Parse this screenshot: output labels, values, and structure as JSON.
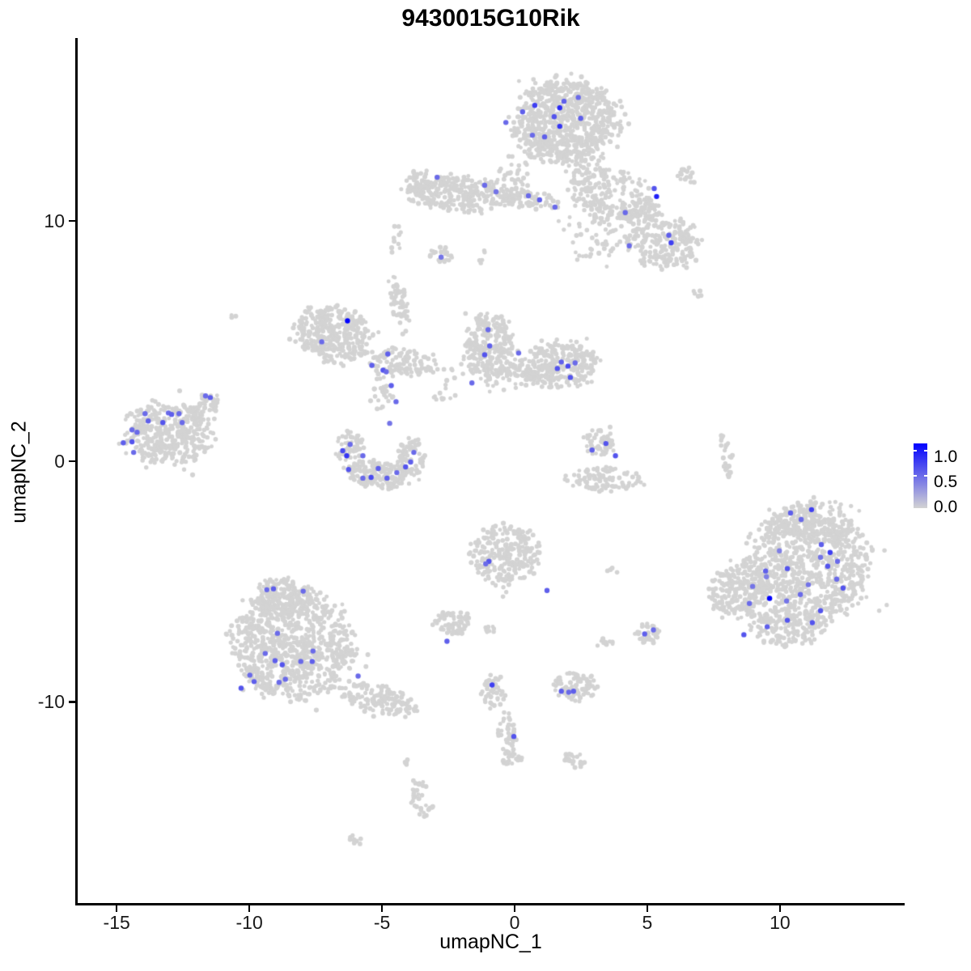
{
  "chart_data": {
    "type": "scatter",
    "title": "9430015G10Rik",
    "xlabel": "umapNC_1",
    "ylabel": "umapNC_2",
    "grid": false,
    "x_domain": [
      -16.5,
      14.7
    ],
    "y_domain": [
      -18.4,
      17.6
    ],
    "x_ticks": [
      -15,
      -10,
      -5,
      0,
      5,
      10
    ],
    "x_tick_labels": [
      "-15",
      "-10",
      "-5",
      "0",
      "5",
      "10"
    ],
    "y_ticks": [
      10,
      0,
      -10
    ],
    "y_tick_labels": [
      "10",
      "0",
      "-10"
    ],
    "legend": {
      "position": "right",
      "labels": [
        "1.0",
        "0.5",
        "0.0"
      ],
      "values": [
        1.0,
        0.5,
        0.0
      ],
      "low_color": "#D3D3D3",
      "high_color": "#0000FF"
    },
    "point_color_low": "#D3D3D3",
    "point_color_high": "#0000FF",
    "background_clusters": [
      [
        1.95,
        14.1,
        2.0,
        1.8,
        750,
        0
      ],
      [
        2.85,
        11.4,
        0.8,
        1.5,
        120,
        15
      ],
      [
        3.8,
        11.05,
        1.4,
        1.15,
        90,
        0
      ],
      [
        -2.05,
        11.15,
        2.1,
        0.75,
        290,
        -4
      ],
      [
        0.5,
        10.85,
        1.1,
        0.42,
        70,
        -6
      ],
      [
        4.7,
        10.4,
        0.9,
        0.6,
        85,
        0
      ],
      [
        5.6,
        9.1,
        1.35,
        1.1,
        210,
        0
      ],
      [
        6.5,
        11.9,
        0.42,
        0.35,
        16,
        0
      ],
      [
        3.2,
        9.4,
        1.4,
        1.4,
        55,
        0
      ],
      [
        -2.8,
        8.6,
        0.5,
        0.42,
        24,
        45
      ],
      [
        6.9,
        7.0,
        0.2,
        0.25,
        5,
        0
      ],
      [
        -6.8,
        5.3,
        1.5,
        1.15,
        360,
        -15
      ],
      [
        -4.2,
        4.1,
        1.25,
        0.6,
        110,
        -10
      ],
      [
        -4.35,
        6.5,
        0.32,
        1.1,
        55,
        10
      ],
      [
        -4.45,
        9.2,
        0.22,
        0.75,
        10,
        0
      ],
      [
        -5.0,
        3.0,
        0.45,
        1.05,
        30,
        0
      ],
      [
        -6.2,
        0.35,
        0.55,
        0.95,
        70,
        0
      ],
      [
        -5.0,
        -0.55,
        1.15,
        0.6,
        150,
        0
      ],
      [
        -3.9,
        0.2,
        0.5,
        0.78,
        60,
        0
      ],
      [
        -0.95,
        4.7,
        0.95,
        1.5,
        270,
        0
      ],
      [
        1.8,
        4.0,
        1.3,
        1.0,
        250,
        0
      ],
      [
        0.4,
        3.7,
        0.85,
        0.6,
        70,
        0
      ],
      [
        -13.0,
        1.2,
        1.7,
        1.35,
        390,
        -8
      ],
      [
        -11.7,
        2.3,
        0.6,
        0.42,
        40,
        40
      ],
      [
        3.2,
        0.75,
        0.6,
        0.55,
        55,
        0
      ],
      [
        3.4,
        -0.75,
        1.35,
        0.52,
        100,
        0
      ],
      [
        8.0,
        0.2,
        0.22,
        0.95,
        28,
        8
      ],
      [
        -8.4,
        -7.7,
        2.3,
        2.2,
        820,
        0
      ],
      [
        -8.7,
        -5.7,
        1.2,
        0.85,
        190,
        0
      ],
      [
        -5.1,
        -9.9,
        1.45,
        0.6,
        150,
        -18
      ],
      [
        -0.35,
        -3.9,
        1.3,
        1.3,
        260,
        0
      ],
      [
        -2.3,
        -6.7,
        0.8,
        0.52,
        65,
        0
      ],
      [
        -0.8,
        -9.6,
        0.42,
        0.72,
        45,
        0
      ],
      [
        -0.3,
        -11.3,
        0.35,
        0.9,
        40,
        0
      ],
      [
        -0.15,
        -12.35,
        0.4,
        0.32,
        22,
        0
      ],
      [
        2.3,
        -9.35,
        0.85,
        0.6,
        85,
        0
      ],
      [
        5.0,
        -7.2,
        0.5,
        0.45,
        35,
        0
      ],
      [
        2.25,
        -12.4,
        0.45,
        0.32,
        22,
        0
      ],
      [
        11.1,
        -4.4,
        2.45,
        2.3,
        760,
        0
      ],
      [
        8.5,
        -5.5,
        1.25,
        1.1,
        220,
        0
      ],
      [
        11.2,
        -2.5,
        1.7,
        0.85,
        190,
        0
      ],
      [
        10.3,
        -6.9,
        1.45,
        0.8,
        160,
        0
      ],
      [
        -3.5,
        -14.1,
        0.38,
        0.95,
        35,
        12
      ],
      [
        -4.1,
        -12.6,
        0.2,
        0.2,
        5,
        0
      ],
      [
        -5.95,
        -15.8,
        0.4,
        0.18,
        8,
        -30
      ],
      [
        -10.6,
        6.1,
        0.18,
        0.15,
        3,
        0
      ],
      [
        3.7,
        -4.55,
        0.22,
        0.18,
        4,
        0
      ],
      [
        -1.0,
        -6.95,
        0.32,
        0.2,
        10,
        0
      ],
      [
        3.45,
        -7.55,
        0.3,
        0.22,
        10,
        0
      ],
      [
        -3.6,
        11.55,
        0.45,
        0.55,
        35,
        0
      ],
      [
        -1.2,
        8.5,
        0.22,
        0.35,
        6,
        0
      ],
      [
        -2.6,
        3.0,
        0.5,
        0.95,
        16,
        0
      ],
      [
        0.0,
        11.9,
        0.7,
        0.8,
        30,
        0
      ]
    ],
    "expressing_cells": [
      [
        1.86,
        14.97,
        0.55
      ],
      [
        0.76,
        14.8,
        0.7
      ],
      [
        1.7,
        14.7,
        0.8
      ],
      [
        2.4,
        15.13,
        0.5
      ],
      [
        0.3,
        14.53,
        0.55
      ],
      [
        1.49,
        14.33,
        0.6
      ],
      [
        2.49,
        14.26,
        0.55
      ],
      [
        -0.33,
        14.09,
        0.5
      ],
      [
        1.7,
        13.93,
        0.75
      ],
      [
        0.67,
        13.56,
        0.5
      ],
      [
        1.13,
        13.49,
        0.55
      ],
      [
        -2.92,
        11.81,
        0.5
      ],
      [
        -1.13,
        11.48,
        0.5
      ],
      [
        -0.7,
        11.21,
        0.45
      ],
      [
        0.52,
        11.04,
        0.5
      ],
      [
        0.94,
        10.87,
        0.55
      ],
      [
        1.52,
        10.57,
        0.5
      ],
      [
        4.17,
        10.34,
        0.5
      ],
      [
        5.26,
        11.34,
        0.6
      ],
      [
        5.35,
        11.01,
        0.85
      ],
      [
        4.32,
        8.96,
        0.5
      ],
      [
        5.81,
        9.4,
        0.55
      ],
      [
        5.9,
        9.09,
        0.7
      ],
      [
        -2.77,
        8.49,
        0.45
      ],
      [
        -6.3,
        5.84,
        1.0
      ],
      [
        -7.27,
        4.97,
        0.5
      ],
      [
        -4.78,
        4.46,
        0.55
      ],
      [
        -5.38,
        3.99,
        0.55
      ],
      [
        -4.96,
        3.79,
        0.6
      ],
      [
        -4.84,
        3.72,
        0.5
      ],
      [
        -4.65,
        3.15,
        0.55
      ],
      [
        -4.47,
        2.48,
        0.5
      ],
      [
        -4.71,
        1.58,
        0.45
      ],
      [
        -6.2,
        0.7,
        0.5
      ],
      [
        -6.48,
        0.44,
        0.65
      ],
      [
        -6.33,
        0.23,
        0.75
      ],
      [
        -6.26,
        -0.34,
        0.6
      ],
      [
        -5.72,
        0.23,
        0.5
      ],
      [
        -5.14,
        -0.3,
        0.55
      ],
      [
        -5.41,
        -0.67,
        0.65
      ],
      [
        -5.72,
        -0.7,
        0.5
      ],
      [
        -4.81,
        -0.7,
        0.55
      ],
      [
        -4.44,
        -0.47,
        0.5
      ],
      [
        -4.11,
        -0.23,
        0.6
      ],
      [
        -3.92,
        -0.03,
        0.55
      ],
      [
        -3.8,
        0.37,
        0.5
      ],
      [
        -1.0,
        5.47,
        0.5
      ],
      [
        -0.94,
        4.8,
        0.55
      ],
      [
        -1.13,
        4.43,
        0.6
      ],
      [
        0.15,
        4.5,
        0.5
      ],
      [
        1.76,
        4.13,
        0.55
      ],
      [
        1.61,
        3.86,
        0.6
      ],
      [
        2.01,
        3.96,
        0.65
      ],
      [
        2.28,
        4.09,
        0.5
      ],
      [
        2.1,
        3.49,
        0.6
      ],
      [
        -1.61,
        3.26,
        0.5
      ],
      [
        -13.93,
        1.98,
        0.5
      ],
      [
        -13.81,
        1.68,
        0.55
      ],
      [
        -13.05,
        2.01,
        0.5
      ],
      [
        -12.93,
        1.95,
        0.55
      ],
      [
        -12.65,
        1.98,
        0.5
      ],
      [
        -13.26,
        1.61,
        0.6
      ],
      [
        -12.53,
        1.61,
        0.5
      ],
      [
        -14.42,
        1.31,
        0.5
      ],
      [
        -14.23,
        1.21,
        0.5
      ],
      [
        -14.42,
        0.81,
        0.6
      ],
      [
        -14.75,
        0.77,
        0.55
      ],
      [
        -14.36,
        0.37,
        0.5
      ],
      [
        -11.65,
        2.72,
        0.5
      ],
      [
        -11.47,
        2.65,
        0.55
      ],
      [
        -9.34,
        -5.34,
        0.5
      ],
      [
        -9.09,
        -5.3,
        0.55
      ],
      [
        -7.97,
        -5.4,
        0.5
      ],
      [
        -8.94,
        -7.15,
        0.5
      ],
      [
        -9.4,
        -7.99,
        0.5
      ],
      [
        -9.03,
        -8.29,
        0.55
      ],
      [
        -8.76,
        -8.46,
        0.6
      ],
      [
        -8.06,
        -8.32,
        0.5
      ],
      [
        -7.6,
        -7.89,
        0.5
      ],
      [
        -7.63,
        -8.32,
        0.55
      ],
      [
        -9.98,
        -8.89,
        0.5
      ],
      [
        -9.82,
        -9.16,
        0.55
      ],
      [
        -8.64,
        -9.06,
        0.5
      ],
      [
        -8.88,
        -9.19,
        0.5
      ],
      [
        -10.31,
        -9.43,
        0.6
      ],
      [
        -5.9,
        -8.93,
        0.5
      ],
      [
        10.4,
        -2.15,
        0.55
      ],
      [
        10.8,
        -2.42,
        0.5
      ],
      [
        11.19,
        -2.01,
        0.7
      ],
      [
        11.56,
        -3.46,
        0.55
      ],
      [
        11.89,
        -3.79,
        0.7
      ],
      [
        11.53,
        -3.99,
        0.45
      ],
      [
        12.17,
        -4.16,
        0.5
      ],
      [
        11.8,
        -4.36,
        0.6
      ],
      [
        9.98,
        -3.72,
        0.4
      ],
      [
        10.28,
        -4.46,
        0.6
      ],
      [
        9.46,
        -4.56,
        0.55
      ],
      [
        9.49,
        -4.8,
        0.4
      ],
      [
        12.14,
        -4.9,
        0.5
      ],
      [
        12.38,
        -5.27,
        0.6
      ],
      [
        8.97,
        -5.2,
        0.45
      ],
      [
        11.07,
        -5.13,
        0.45
      ],
      [
        9.61,
        -5.7,
        1.0
      ],
      [
        8.85,
        -5.91,
        0.5
      ],
      [
        10.25,
        -5.81,
        0.45
      ],
      [
        10.77,
        -5.54,
        0.5
      ],
      [
        11.53,
        -6.21,
        0.6
      ],
      [
        10.28,
        -6.61,
        0.6
      ],
      [
        11.22,
        -6.71,
        0.6
      ],
      [
        9.52,
        -6.88,
        0.55
      ],
      [
        8.64,
        -7.21,
        0.6
      ],
      [
        2.92,
        0.47,
        0.55
      ],
      [
        3.44,
        0.74,
        0.6
      ],
      [
        3.8,
        0.23,
        0.6
      ],
      [
        -0.97,
        -4.16,
        0.6
      ],
      [
        -1.09,
        -4.26,
        0.5
      ],
      [
        1.22,
        -5.37,
        0.55
      ],
      [
        -2.55,
        -7.48,
        0.55
      ],
      [
        -0.85,
        -9.3,
        0.7
      ],
      [
        -0.03,
        -11.44,
        0.6
      ],
      [
        2.22,
        -9.56,
        0.55
      ],
      [
        2.04,
        -9.6,
        0.5
      ],
      [
        1.76,
        -9.56,
        0.55
      ],
      [
        4.9,
        -7.18,
        0.55
      ],
      [
        5.23,
        -7.01,
        0.5
      ]
    ]
  }
}
